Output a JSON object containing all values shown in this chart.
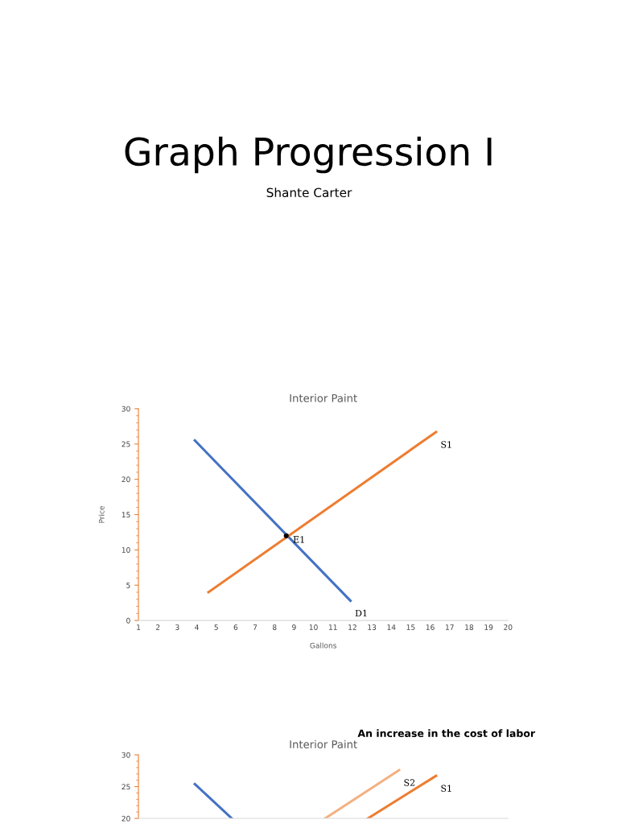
{
  "chart_data": [
    {
      "type": "line",
      "title": "Interior Paint",
      "xlabel": "Gallons",
      "ylabel": "Price",
      "xlim": [
        1,
        20
      ],
      "xticks": [
        1,
        2,
        3,
        4,
        5,
        6,
        7,
        8,
        9,
        10,
        11,
        12,
        13,
        14,
        15,
        16,
        17,
        18,
        19,
        20
      ],
      "ylim": [
        0,
        30
      ],
      "yticks": [
        0,
        5,
        10,
        15,
        20,
        25,
        30
      ],
      "grid": false,
      "legend": false,
      "marker": "none",
      "series": [
        {
          "name": "D1",
          "color": "#4472c4",
          "x": [
            3.9,
            11.9
          ],
          "values": [
            25.5,
            2.8
          ]
        },
        {
          "name": "S1",
          "color": "#ed7d31",
          "x": [
            4.6,
            16.3
          ],
          "values": [
            4.0,
            26.7
          ]
        },
        {
          "type": "scatter",
          "color": "#000000",
          "x": [
            8.6
          ],
          "values": [
            12.0
          ]
        }
      ],
      "annotations": [
        "Graph Progression I",
        "Shante Carter",
        {
          "text": "E1",
          "x": 8.6,
          "y": 12.0
        }
      ]
    },
    {
      "type": "line",
      "title": "Interior Paint",
      "xlim": [
        1,
        20
      ],
      "ylim": [
        20,
        30
      ],
      "yticks": [
        20,
        25,
        30
      ],
      "tick_labels": "y",
      "grid": false,
      "legend": false,
      "marker": "none",
      "series": [
        {
          "color": "#4472c4",
          "x": [
            3.9,
            5.8
          ],
          "values": [
            25.4,
            20.0
          ]
        },
        {
          "name": "S1",
          "color": "#ed7d31",
          "x": [
            12.8,
            16.3
          ],
          "values": [
            20.0,
            26.7
          ]
        },
        {
          "name": "S2",
          "color": "#f4b183",
          "x": [
            10.6,
            14.4
          ],
          "values": [
            20.0,
            27.6
          ]
        }
      ],
      "annotations": [
        "An increase in the cost of labor"
      ]
    }
  ]
}
